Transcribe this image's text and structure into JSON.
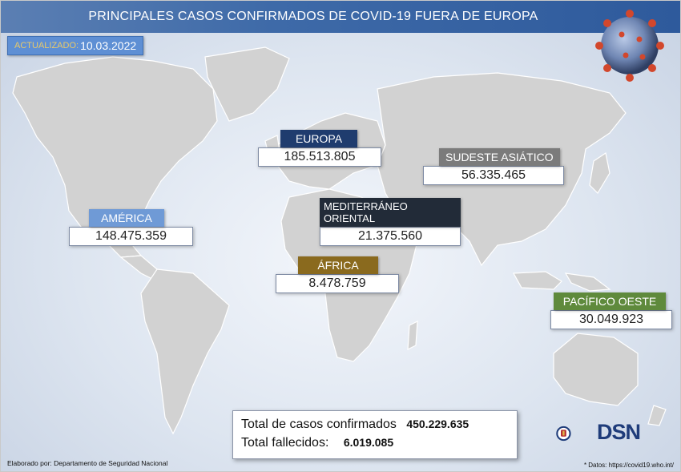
{
  "title": "PRINCIPALES CASOS CONFIRMADOS DE COVID-19 FUERA DE EUROPA",
  "updated": {
    "label": "ACTUALIZADO:",
    "value": "10.03.2022"
  },
  "regions": {
    "america": {
      "label": "AMÉRICA",
      "value": "148.475.359",
      "color": "#6f9ad6"
    },
    "europa": {
      "label": "EUROPA",
      "value": "185.513.805",
      "color": "#1f3c6e"
    },
    "sudeste": {
      "label": "SUDESTE ASIÁTICO",
      "value": "56.335.465",
      "color": "#7b7b7b"
    },
    "mediterraneo": {
      "label": "MEDITERRÁNEO ORIENTAL",
      "value": "21.375.560",
      "color": "#222b38"
    },
    "africa": {
      "label": "ÁFRICA",
      "value": "8.478.759",
      "color": "#8a6a1e"
    },
    "pacifico": {
      "label": "PACÍFICO OESTE",
      "value": "30.049.923",
      "color": "#5f8a3c"
    }
  },
  "totals": {
    "cases_label": "Total de casos confirmados",
    "cases_value": "450.229.635",
    "deaths_label": "Total fallecidos:",
    "deaths_value": "6.019.085"
  },
  "logo_text": "DSN",
  "footer_left": "Elaborado por: Departamento de Seguridad Nacional",
  "footer_right": "* Datos: https://covid19.who.int/"
}
